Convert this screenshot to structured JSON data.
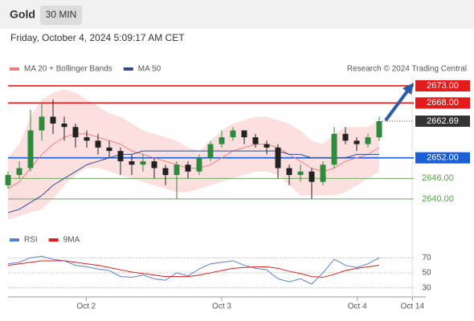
{
  "header": {
    "title": "Gold",
    "interval": "30 MIN",
    "timestamp": "Friday, October 4, 2024 5:09:17 AM CET",
    "source": "Research © 2024 Trading Central"
  },
  "chart_data": [
    {
      "type": "candlestick",
      "x": [
        0,
        2,
        4,
        6,
        8,
        10,
        12,
        14,
        16,
        18,
        20,
        22,
        24,
        26,
        28,
        30,
        32,
        34,
        36,
        38,
        40,
        42,
        44,
        46,
        48,
        50,
        52,
        54,
        56,
        58,
        60,
        62,
        64,
        66
      ],
      "open": [
        2644,
        2647,
        2649,
        2660,
        2664,
        2662,
        2661,
        2658,
        2657,
        2655,
        2654,
        2651,
        2650,
        2651,
        2649,
        2647,
        2650,
        2648,
        2652,
        2656,
        2658,
        2660,
        2658,
        2656,
        2655,
        2649,
        2647,
        2648,
        2645,
        2650,
        2659,
        2657,
        2656,
        2658
      ],
      "high": [
        2648,
        2651,
        2666,
        2668,
        2669,
        2664,
        2662,
        2660,
        2659,
        2657,
        2655,
        2653,
        2653,
        2652,
        2650,
        2651,
        2651,
        2653,
        2657,
        2660,
        2661,
        2660,
        2659,
        2657,
        2656,
        2650,
        2650,
        2649,
        2651,
        2661,
        2661,
        2658,
        2659,
        2664
      ],
      "low": [
        2643,
        2646,
        2648,
        2657,
        2659,
        2657,
        2655,
        2655,
        2653,
        2652,
        2647,
        2647,
        2648,
        2646,
        2644,
        2640,
        2646,
        2647,
        2651,
        2655,
        2657,
        2656,
        2655,
        2653,
        2646,
        2644,
        2645,
        2640,
        2644,
        2649,
        2656,
        2654,
        2655,
        2657
      ],
      "close": [
        2647,
        2649,
        2660,
        2664,
        2662,
        2661,
        2658,
        2657,
        2655,
        2654,
        2651,
        2650,
        2651,
        2649,
        2647,
        2650,
        2648,
        2652,
        2656,
        2658,
        2660,
        2658,
        2656,
        2655,
        2649,
        2647,
        2648,
        2645,
        2650,
        2659,
        2657,
        2656,
        2658,
        2662.69
      ],
      "up_color": "#2e8b3e",
      "down_color": "#222222",
      "xlim": [
        0,
        72
      ],
      "ylim": [
        2632.5,
        2675.8
      ],
      "xticks": [
        {
          "value": 13.9,
          "label": "Oct 2"
        },
        {
          "value": 38,
          "label": "Oct 3"
        },
        {
          "value": 62.1,
          "label": "Oct 4"
        },
        {
          "value": 71.9,
          "label": "Oct 14"
        }
      ],
      "series": [
        {
          "name": "MA 20 + Bollinger Bands",
          "color": "#f08080",
          "band_color": "#fbd5d5",
          "values": [
            2643,
            2645,
            2649,
            2653,
            2656,
            2658,
            2659,
            2659,
            2658,
            2657,
            2656,
            2654,
            2653,
            2652,
            2651,
            2650,
            2649,
            2649,
            2650,
            2652,
            2654,
            2655,
            2656,
            2656,
            2655,
            2653,
            2651,
            2649,
            2648,
            2649,
            2651,
            2652,
            2653,
            2655
          ],
          "upper": [
            2652,
            2656,
            2664,
            2669,
            2671,
            2672,
            2671,
            2669,
            2667,
            2665,
            2664,
            2662,
            2660,
            2659,
            2658,
            2657,
            2655,
            2654,
            2657,
            2660,
            2662,
            2663,
            2664,
            2664,
            2663,
            2662,
            2660,
            2657,
            2656,
            2659,
            2661,
            2661,
            2661,
            2663
          ],
          "lower": [
            2634,
            2635,
            2636,
            2637,
            2640,
            2644,
            2647,
            2649,
            2649,
            2648,
            2647,
            2646,
            2645,
            2644,
            2643,
            2642,
            2642,
            2643,
            2644,
            2645,
            2646,
            2647,
            2648,
            2648,
            2647,
            2644,
            2641,
            2641,
            2641,
            2641,
            2642,
            2644,
            2646,
            2648
          ]
        },
        {
          "name": "MA 50",
          "color": "#2b4f8f",
          "values": [
            2636,
            2637,
            2639,
            2641,
            2644,
            2646,
            2648,
            2650,
            2651,
            2652,
            2653,
            2653,
            2654,
            2654,
            2654,
            2654,
            2654,
            2654,
            2654,
            2654,
            2654,
            2654,
            2654,
            2654,
            2654,
            2653,
            2653,
            2652,
            2652,
            2652,
            2652,
            2653,
            2653,
            2653
          ]
        }
      ],
      "levels": [
        {
          "value": 2673,
          "label": "2673.00",
          "color": "#e31b1b",
          "boxed": true
        },
        {
          "value": 2668,
          "label": "2668.00",
          "color": "#e31b1b",
          "boxed": true
        },
        {
          "value": 2652,
          "label": "2652.00",
          "color": "#1a5fd6",
          "boxed": true
        },
        {
          "value": 2646,
          "label": "2646.00",
          "color": "#5a9e4b",
          "boxed": false
        },
        {
          "value": 2640,
          "label": "2640.00",
          "color": "#5a9e4b",
          "boxed": false
        }
      ],
      "last_price": {
        "value": 2662.69,
        "label": "2662.69",
        "color": "#333333"
      }
    },
    {
      "type": "line",
      "x": [
        0,
        2,
        4,
        6,
        8,
        10,
        12,
        14,
        16,
        18,
        20,
        22,
        24,
        26,
        28,
        30,
        32,
        34,
        36,
        38,
        40,
        42,
        44,
        46,
        48,
        50,
        52,
        54,
        56,
        58,
        60,
        62,
        64,
        66
      ],
      "xlim": [
        0,
        72
      ],
      "ylim": [
        20,
        82
      ],
      "yticks": [
        30,
        50,
        70
      ],
      "series": [
        {
          "name": "RSI",
          "color": "#5b7fd6",
          "values": [
            62,
            64,
            70,
            72,
            68,
            66,
            60,
            58,
            55,
            53,
            45,
            44,
            47,
            42,
            40,
            50,
            46,
            55,
            62,
            64,
            66,
            60,
            56,
            54,
            42,
            38,
            42,
            35,
            50,
            68,
            60,
            57,
            62,
            70
          ]
        },
        {
          "name": "9MA",
          "color": "#e31b1b",
          "values": [
            60,
            62,
            64,
            66,
            66,
            66,
            64,
            62,
            60,
            57,
            54,
            51,
            49,
            47,
            45,
            45,
            45,
            47,
            50,
            53,
            56,
            57,
            58,
            58,
            56,
            52,
            49,
            45,
            44,
            48,
            53,
            56,
            58,
            60
          ]
        }
      ]
    }
  ]
}
